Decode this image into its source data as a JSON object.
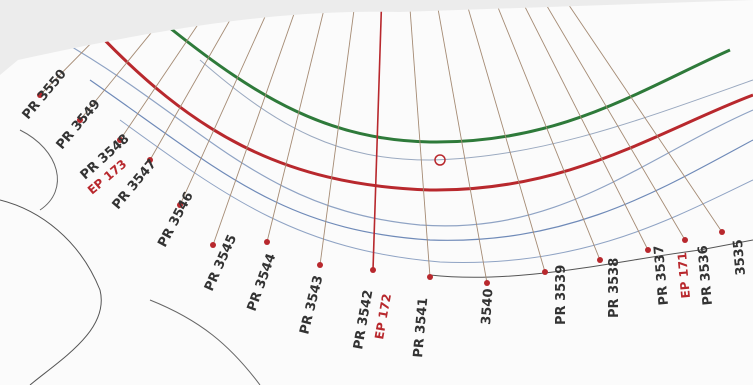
{
  "stations": [
    {
      "label": "PR 3550"
    },
    {
      "label": "PR 3549"
    },
    {
      "label": "PR 3548"
    },
    {
      "label": "PR 3547"
    },
    {
      "label": "PR 3546"
    },
    {
      "label": "PR 3545"
    },
    {
      "label": "PR 3544"
    },
    {
      "label": "PR 3543"
    },
    {
      "label": "PR 3542"
    },
    {
      "label": "PR 3541"
    },
    {
      "label": "3540"
    },
    {
      "label": "PR 3539"
    },
    {
      "label": "PR 3538"
    },
    {
      "label": "PR 3537"
    },
    {
      "label": "PR 3536"
    },
    {
      "label": "3535"
    }
  ],
  "markers": [
    {
      "label": "EP 173"
    },
    {
      "label": "EP 172"
    },
    {
      "label": "EP 171"
    }
  ]
}
